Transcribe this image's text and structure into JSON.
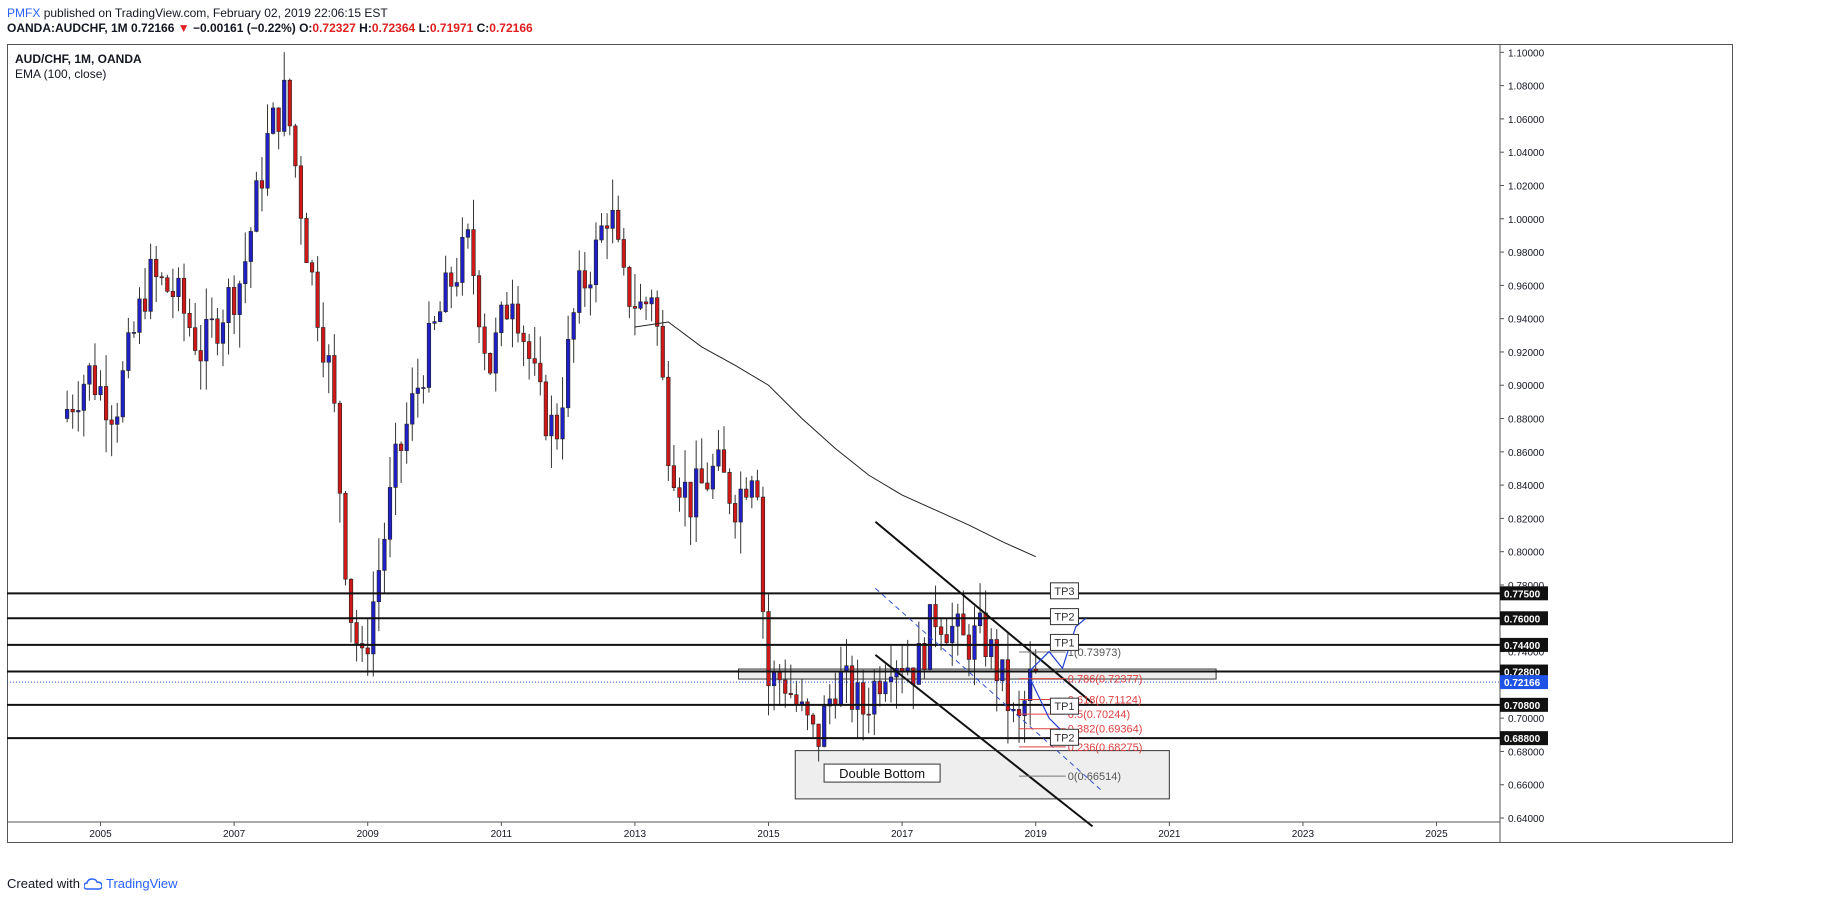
{
  "header": {
    "brand": "PMFX",
    "published": "published on TradingView.com, February 02, 2019 22:06:15 EST",
    "symbol": "OANDA:AUDCHF, 1M",
    "last": "0.72166",
    "change": "−0.00161 (−0.22%)",
    "o_label": "O:",
    "o": "0.72327",
    "h_label": "H:",
    "h": "0.72364",
    "l_label": "L:",
    "l": "0.71971",
    "c_label": "C:",
    "c": "0.72166"
  },
  "legend": {
    "symbol": "AUD/CHF, 1M, OANDA",
    "indicator": "EMA (100, close)"
  },
  "footer": {
    "created": "Created with",
    "brand": "TradingView"
  },
  "colors": {
    "up": "#2020c8",
    "down": "#d01818",
    "ema": "#222222",
    "fib": "#e04040",
    "price_label": "#1e53e5"
  },
  "chart_data": {
    "type": "candlestick",
    "title": "AUD/CHF, 1M, OANDA",
    "ylim": [
      0.625,
      1.105
    ],
    "y_ticks": [
      "1.10000",
      "1.08000",
      "1.06000",
      "1.04000",
      "1.02000",
      "1.00000",
      "0.98000",
      "0.96000",
      "0.94000",
      "0.92000",
      "0.90000",
      "0.88000",
      "0.86000",
      "0.84000",
      "0.82000",
      "0.80000",
      "0.78000",
      "0.76000",
      "0.74000",
      "0.72000",
      "0.70000",
      "0.68000",
      "0.66000",
      "0.64000"
    ],
    "x_ticks": [
      "2005",
      "2007",
      "2009",
      "2011",
      "2013",
      "2015",
      "2017",
      "2019",
      "2021",
      "2023",
      "2025"
    ],
    "x_range": [
      2003.6,
      2025.95
    ],
    "anchors": [
      [
        2004.5,
        0.88
      ],
      [
        2004.9,
        0.908
      ],
      [
        2005.3,
        0.885
      ],
      [
        2005.8,
        0.965
      ],
      [
        2006.2,
        0.955
      ],
      [
        2006.6,
        0.92
      ],
      [
        2006.9,
        0.945
      ],
      [
        2007.2,
        0.965
      ],
      [
        2007.6,
        1.05
      ],
      [
        2007.85,
        1.075
      ],
      [
        2008.2,
        0.975
      ],
      [
        2008.55,
        0.9
      ],
      [
        2008.8,
        0.77
      ],
      [
        2009.0,
        0.73
      ],
      [
        2009.5,
        0.85
      ],
      [
        2009.9,
        0.91
      ],
      [
        2010.3,
        0.96
      ],
      [
        2010.6,
        0.985
      ],
      [
        2010.9,
        0.91
      ],
      [
        2011.25,
        0.96
      ],
      [
        2011.65,
        0.89
      ],
      [
        2011.9,
        0.87
      ],
      [
        2012.2,
        0.95
      ],
      [
        2012.5,
        0.98
      ],
      [
        2012.7,
        1.01
      ],
      [
        2012.9,
        0.96
      ],
      [
        2013.2,
        0.945
      ],
      [
        2013.35,
        0.96
      ],
      [
        2013.6,
        0.86
      ],
      [
        2013.9,
        0.83
      ],
      [
        2014.3,
        0.85
      ],
      [
        2014.6,
        0.83
      ],
      [
        2014.9,
        0.86
      ],
      [
        2015.05,
        0.72
      ],
      [
        2015.3,
        0.725
      ],
      [
        2015.6,
        0.7
      ],
      [
        2015.8,
        0.685
      ],
      [
        2016.1,
        0.725
      ],
      [
        2016.5,
        0.705
      ],
      [
        2016.9,
        0.74
      ],
      [
        2017.3,
        0.73
      ],
      [
        2017.6,
        0.765
      ],
      [
        2018.0,
        0.745
      ],
      [
        2018.3,
        0.75
      ],
      [
        2018.6,
        0.72
      ],
      [
        2018.8,
        0.69
      ],
      [
        2019.0,
        0.722
      ]
    ],
    "ema": [
      [
        2013.0,
        0.935
      ],
      [
        2013.5,
        0.938
      ],
      [
        2014.0,
        0.923
      ],
      [
        2014.5,
        0.912
      ],
      [
        2015.0,
        0.9
      ],
      [
        2015.5,
        0.88
      ],
      [
        2016.0,
        0.862
      ],
      [
        2016.5,
        0.846
      ],
      [
        2017.0,
        0.834
      ],
      [
        2017.5,
        0.825
      ],
      [
        2018.0,
        0.816
      ],
      [
        2018.5,
        0.806
      ],
      [
        2019.0,
        0.797
      ]
    ],
    "horizontal_levels": [
      {
        "value": 0.775,
        "label": "0.77500"
      },
      {
        "value": 0.76,
        "label": "0.76000"
      },
      {
        "value": 0.744,
        "label": "0.74400"
      },
      {
        "value": 0.728,
        "label": "0.72800"
      },
      {
        "value": 0.708,
        "label": "0.70800"
      },
      {
        "value": 0.688,
        "label": "0.68800"
      }
    ],
    "current_price": {
      "value": 0.72166,
      "label": "0.72166"
    },
    "fib_levels": [
      {
        "value": 0.73973,
        "text": "1(0.73973)"
      },
      {
        "value": 0.72377,
        "text": "0.786(0.72377)"
      },
      {
        "value": 0.71124,
        "text": "0.618(0.71124)"
      },
      {
        "value": 0.70244,
        "text": "0.5(0.70244)"
      },
      {
        "value": 0.69364,
        "text": "0.382(0.69364)"
      },
      {
        "value": 0.68275,
        "text": "0.236(0.68275)"
      },
      {
        "value": 0.66514,
        "text": "0(0.66514)"
      }
    ],
    "targets": [
      {
        "text": "TP3",
        "x": 2019.4,
        "value": 0.7765
      },
      {
        "text": "TP2",
        "x": 2019.4,
        "value": 0.761
      },
      {
        "text": "TP1",
        "x": 2019.4,
        "value": 0.7455
      },
      {
        "text": "TP1",
        "x": 2019.4,
        "value": 0.7072
      },
      {
        "text": "TP2",
        "x": 2019.4,
        "value": 0.6885
      }
    ],
    "annotation": {
      "text": "Double Bottom",
      "x": 2016.7,
      "value": 0.667
    },
    "channel_lines": [
      {
        "x1": 2016.6,
        "y1": 0.818,
        "x2": 2019.85,
        "y2": 0.709
      },
      {
        "x1": 2016.6,
        "y1": 0.738,
        "x2": 2019.85,
        "y2": 0.635
      }
    ],
    "channel_mid": {
      "x1": 2016.6,
      "y1": 0.778,
      "x2": 2020.0,
      "y2": 0.656
    },
    "zones": [
      {
        "x1": 2014.55,
        "x2": 2021.7,
        "y1": 0.7235,
        "y2": 0.7295
      },
      {
        "x1": 2015.4,
        "x2": 2021.0,
        "y1": 0.6515,
        "y2": 0.6805
      }
    ],
    "projection": [
      [
        2018.9,
        0.728
      ],
      [
        2019.2,
        0.74
      ],
      [
        2019.4,
        0.73
      ],
      [
        2019.6,
        0.755
      ],
      [
        2019.75,
        0.76
      ]
    ],
    "projection2": [
      [
        2018.9,
        0.725
      ],
      [
        2019.2,
        0.7
      ],
      [
        2019.45,
        0.69
      ]
    ]
  }
}
